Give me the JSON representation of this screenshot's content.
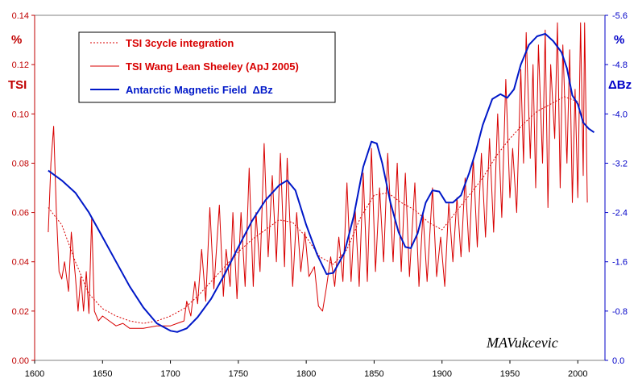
{
  "chart_data": {
    "type": "line",
    "title": "",
    "colors": {
      "tsi": "#d80000",
      "field": "#0018c8",
      "axis_left": "#c00000",
      "axis_right": "#0000c8",
      "frame": "#808080"
    },
    "x": {
      "label": "",
      "range": [
        1600,
        2020
      ],
      "ticks": [
        1600,
        1650,
        1700,
        1750,
        1800,
        1850,
        1900,
        1950,
        2000
      ]
    },
    "y_left": {
      "unit": "%",
      "label": "TSI",
      "range": [
        0.0,
        0.14
      ],
      "ticks": [
        "0.00",
        "0.02",
        "0.04",
        "0.06",
        "0.08",
        "0.10",
        "0.12",
        "0.14"
      ]
    },
    "y_right": {
      "unit": "%",
      "label": "ΔBz",
      "range": [
        0.0,
        -5.6
      ],
      "ticks": [
        "0.0",
        "-0.8",
        "-1.6",
        "-2.4",
        "-3.2",
        "-4.0",
        "-4.8",
        "-5.6"
      ]
    },
    "grid": false,
    "legend_position": "top-left",
    "series": [
      {
        "name": "TSI 3cycle integration",
        "axis": "left",
        "style": "dotted",
        "points": [
          [
            1610,
            0.062
          ],
          [
            1620,
            0.055
          ],
          [
            1630,
            0.04
          ],
          [
            1640,
            0.027
          ],
          [
            1650,
            0.021
          ],
          [
            1660,
            0.018
          ],
          [
            1670,
            0.016
          ],
          [
            1680,
            0.015
          ],
          [
            1690,
            0.016
          ],
          [
            1700,
            0.018
          ],
          [
            1710,
            0.021
          ],
          [
            1720,
            0.026
          ],
          [
            1730,
            0.032
          ],
          [
            1740,
            0.038
          ],
          [
            1750,
            0.044
          ],
          [
            1760,
            0.049
          ],
          [
            1770,
            0.053
          ],
          [
            1780,
            0.057
          ],
          [
            1790,
            0.056
          ],
          [
            1800,
            0.05
          ],
          [
            1810,
            0.042
          ],
          [
            1820,
            0.039
          ],
          [
            1830,
            0.045
          ],
          [
            1840,
            0.058
          ],
          [
            1850,
            0.067
          ],
          [
            1860,
            0.068
          ],
          [
            1870,
            0.064
          ],
          [
            1880,
            0.061
          ],
          [
            1890,
            0.056
          ],
          [
            1900,
            0.053
          ],
          [
            1910,
            0.06
          ],
          [
            1920,
            0.067
          ],
          [
            1930,
            0.074
          ],
          [
            1940,
            0.083
          ],
          [
            1950,
            0.09
          ],
          [
            1960,
            0.096
          ],
          [
            1970,
            0.101
          ],
          [
            1980,
            0.104
          ],
          [
            1990,
            0.107
          ],
          [
            2000,
            0.105
          ]
        ]
      },
      {
        "name": "TSI Wang Lean Sheeley (ApJ 2005)",
        "axis": "left",
        "style": "solid",
        "points": [
          [
            1610,
            0.052
          ],
          [
            1612,
            0.08
          ],
          [
            1614,
            0.095
          ],
          [
            1616,
            0.06
          ],
          [
            1618,
            0.036
          ],
          [
            1620,
            0.033
          ],
          [
            1622,
            0.04
          ],
          [
            1625,
            0.028
          ],
          [
            1627,
            0.052
          ],
          [
            1630,
            0.034
          ],
          [
            1632,
            0.02
          ],
          [
            1634,
            0.034
          ],
          [
            1636,
            0.02
          ],
          [
            1638,
            0.036
          ],
          [
            1640,
            0.019
          ],
          [
            1642,
            0.058
          ],
          [
            1644,
            0.02
          ],
          [
            1647,
            0.016
          ],
          [
            1650,
            0.018
          ],
          [
            1655,
            0.016
          ],
          [
            1660,
            0.014
          ],
          [
            1665,
            0.015
          ],
          [
            1670,
            0.013
          ],
          [
            1680,
            0.013
          ],
          [
            1690,
            0.014
          ],
          [
            1700,
            0.014
          ],
          [
            1705,
            0.015
          ],
          [
            1710,
            0.016
          ],
          [
            1712,
            0.024
          ],
          [
            1715,
            0.018
          ],
          [
            1718,
            0.032
          ],
          [
            1720,
            0.023
          ],
          [
            1723,
            0.045
          ],
          [
            1726,
            0.024
          ],
          [
            1729,
            0.062
          ],
          [
            1732,
            0.029
          ],
          [
            1736,
            0.063
          ],
          [
            1739,
            0.026
          ],
          [
            1741,
            0.045
          ],
          [
            1744,
            0.03
          ],
          [
            1746,
            0.06
          ],
          [
            1749,
            0.025
          ],
          [
            1752,
            0.06
          ],
          [
            1755,
            0.03
          ],
          [
            1758,
            0.078
          ],
          [
            1761,
            0.03
          ],
          [
            1763,
            0.06
          ],
          [
            1766,
            0.036
          ],
          [
            1769,
            0.088
          ],
          [
            1772,
            0.042
          ],
          [
            1775,
            0.075
          ],
          [
            1778,
            0.04
          ],
          [
            1781,
            0.084
          ],
          [
            1784,
            0.038
          ],
          [
            1786,
            0.082
          ],
          [
            1790,
            0.03
          ],
          [
            1793,
            0.06
          ],
          [
            1796,
            0.036
          ],
          [
            1799,
            0.052
          ],
          [
            1802,
            0.034
          ],
          [
            1806,
            0.038
          ],
          [
            1809,
            0.022
          ],
          [
            1812,
            0.02
          ],
          [
            1815,
            0.03
          ],
          [
            1818,
            0.042
          ],
          [
            1821,
            0.03
          ],
          [
            1824,
            0.05
          ],
          [
            1827,
            0.032
          ],
          [
            1830,
            0.072
          ],
          [
            1833,
            0.032
          ],
          [
            1836,
            0.062
          ],
          [
            1839,
            0.03
          ],
          [
            1842,
            0.076
          ],
          [
            1845,
            0.032
          ],
          [
            1848,
            0.086
          ],
          [
            1851,
            0.036
          ],
          [
            1854,
            0.07
          ],
          [
            1857,
            0.04
          ],
          [
            1860,
            0.084
          ],
          [
            1864,
            0.04
          ],
          [
            1867,
            0.08
          ],
          [
            1870,
            0.036
          ],
          [
            1873,
            0.076
          ],
          [
            1876,
            0.034
          ],
          [
            1880,
            0.072
          ],
          [
            1883,
            0.03
          ],
          [
            1886,
            0.06
          ],
          [
            1889,
            0.032
          ],
          [
            1893,
            0.07
          ],
          [
            1896,
            0.034
          ],
          [
            1899,
            0.05
          ],
          [
            1902,
            0.03
          ],
          [
            1905,
            0.064
          ],
          [
            1908,
            0.04
          ],
          [
            1911,
            0.066
          ],
          [
            1914,
            0.042
          ],
          [
            1917,
            0.074
          ],
          [
            1920,
            0.044
          ],
          [
            1923,
            0.082
          ],
          [
            1926,
            0.046
          ],
          [
            1929,
            0.084
          ],
          [
            1932,
            0.05
          ],
          [
            1935,
            0.09
          ],
          [
            1938,
            0.052
          ],
          [
            1941,
            0.1
          ],
          [
            1944,
            0.058
          ],
          [
            1947,
            0.114
          ],
          [
            1950,
            0.066
          ],
          [
            1952,
            0.086
          ],
          [
            1955,
            0.06
          ],
          [
            1958,
            0.118
          ],
          [
            1960,
            0.08
          ],
          [
            1962,
            0.133
          ],
          [
            1965,
            0.082
          ],
          [
            1967,
            0.12
          ],
          [
            1969,
            0.07
          ],
          [
            1971,
            0.128
          ],
          [
            1974,
            0.08
          ],
          [
            1976,
            0.134
          ],
          [
            1978,
            0.062
          ],
          [
            1980,
            0.12
          ],
          [
            1983,
            0.09
          ],
          [
            1985,
            0.137
          ],
          [
            1987,
            0.07
          ],
          [
            1989,
            0.128
          ],
          [
            1992,
            0.08
          ],
          [
            1994,
            0.126
          ],
          [
            1996,
            0.064
          ],
          [
            1998,
            0.11
          ],
          [
            2000,
            0.066
          ],
          [
            2002,
            0.137
          ],
          [
            2004,
            0.075
          ],
          [
            2005,
            0.137
          ],
          [
            2007,
            0.064
          ]
        ]
      },
      {
        "name": "Antarctic Magnetic Field  ΔBz",
        "axis": "right",
        "style": "solid",
        "points": [
          [
            1610,
            -3.08
          ],
          [
            1620,
            -2.92
          ],
          [
            1630,
            -2.72
          ],
          [
            1640,
            -2.4
          ],
          [
            1650,
            -2.0
          ],
          [
            1660,
            -1.6
          ],
          [
            1670,
            -1.2
          ],
          [
            1680,
            -0.86
          ],
          [
            1690,
            -0.6
          ],
          [
            1700,
            -0.48
          ],
          [
            1705,
            -0.46
          ],
          [
            1712,
            -0.52
          ],
          [
            1720,
            -0.7
          ],
          [
            1730,
            -1.0
          ],
          [
            1740,
            -1.4
          ],
          [
            1750,
            -1.84
          ],
          [
            1760,
            -2.26
          ],
          [
            1770,
            -2.6
          ],
          [
            1780,
            -2.84
          ],
          [
            1786,
            -2.92
          ],
          [
            1792,
            -2.76
          ],
          [
            1800,
            -2.2
          ],
          [
            1808,
            -1.72
          ],
          [
            1815,
            -1.4
          ],
          [
            1820,
            -1.42
          ],
          [
            1828,
            -1.74
          ],
          [
            1835,
            -2.34
          ],
          [
            1842,
            -3.14
          ],
          [
            1848,
            -3.55
          ],
          [
            1852,
            -3.52
          ],
          [
            1856,
            -3.2
          ],
          [
            1862,
            -2.56
          ],
          [
            1868,
            -2.08
          ],
          [
            1873,
            -1.84
          ],
          [
            1877,
            -1.82
          ],
          [
            1882,
            -2.06
          ],
          [
            1888,
            -2.56
          ],
          [
            1893,
            -2.76
          ],
          [
            1898,
            -2.74
          ],
          [
            1903,
            -2.56
          ],
          [
            1908,
            -2.56
          ],
          [
            1914,
            -2.68
          ],
          [
            1920,
            -3.04
          ],
          [
            1925,
            -3.4
          ],
          [
            1930,
            -3.82
          ],
          [
            1937,
            -4.24
          ],
          [
            1943,
            -4.32
          ],
          [
            1948,
            -4.26
          ],
          [
            1953,
            -4.4
          ],
          [
            1958,
            -4.8
          ],
          [
            1964,
            -5.12
          ],
          [
            1970,
            -5.26
          ],
          [
            1976,
            -5.3
          ],
          [
            1982,
            -5.18
          ],
          [
            1988,
            -5.0
          ],
          [
            1992,
            -4.74
          ],
          [
            1996,
            -4.3
          ],
          [
            2000,
            -4.16
          ],
          [
            2004,
            -3.86
          ],
          [
            2008,
            -3.76
          ],
          [
            2012,
            -3.7
          ]
        ]
      }
    ],
    "annotation": "MAVukcevic"
  }
}
